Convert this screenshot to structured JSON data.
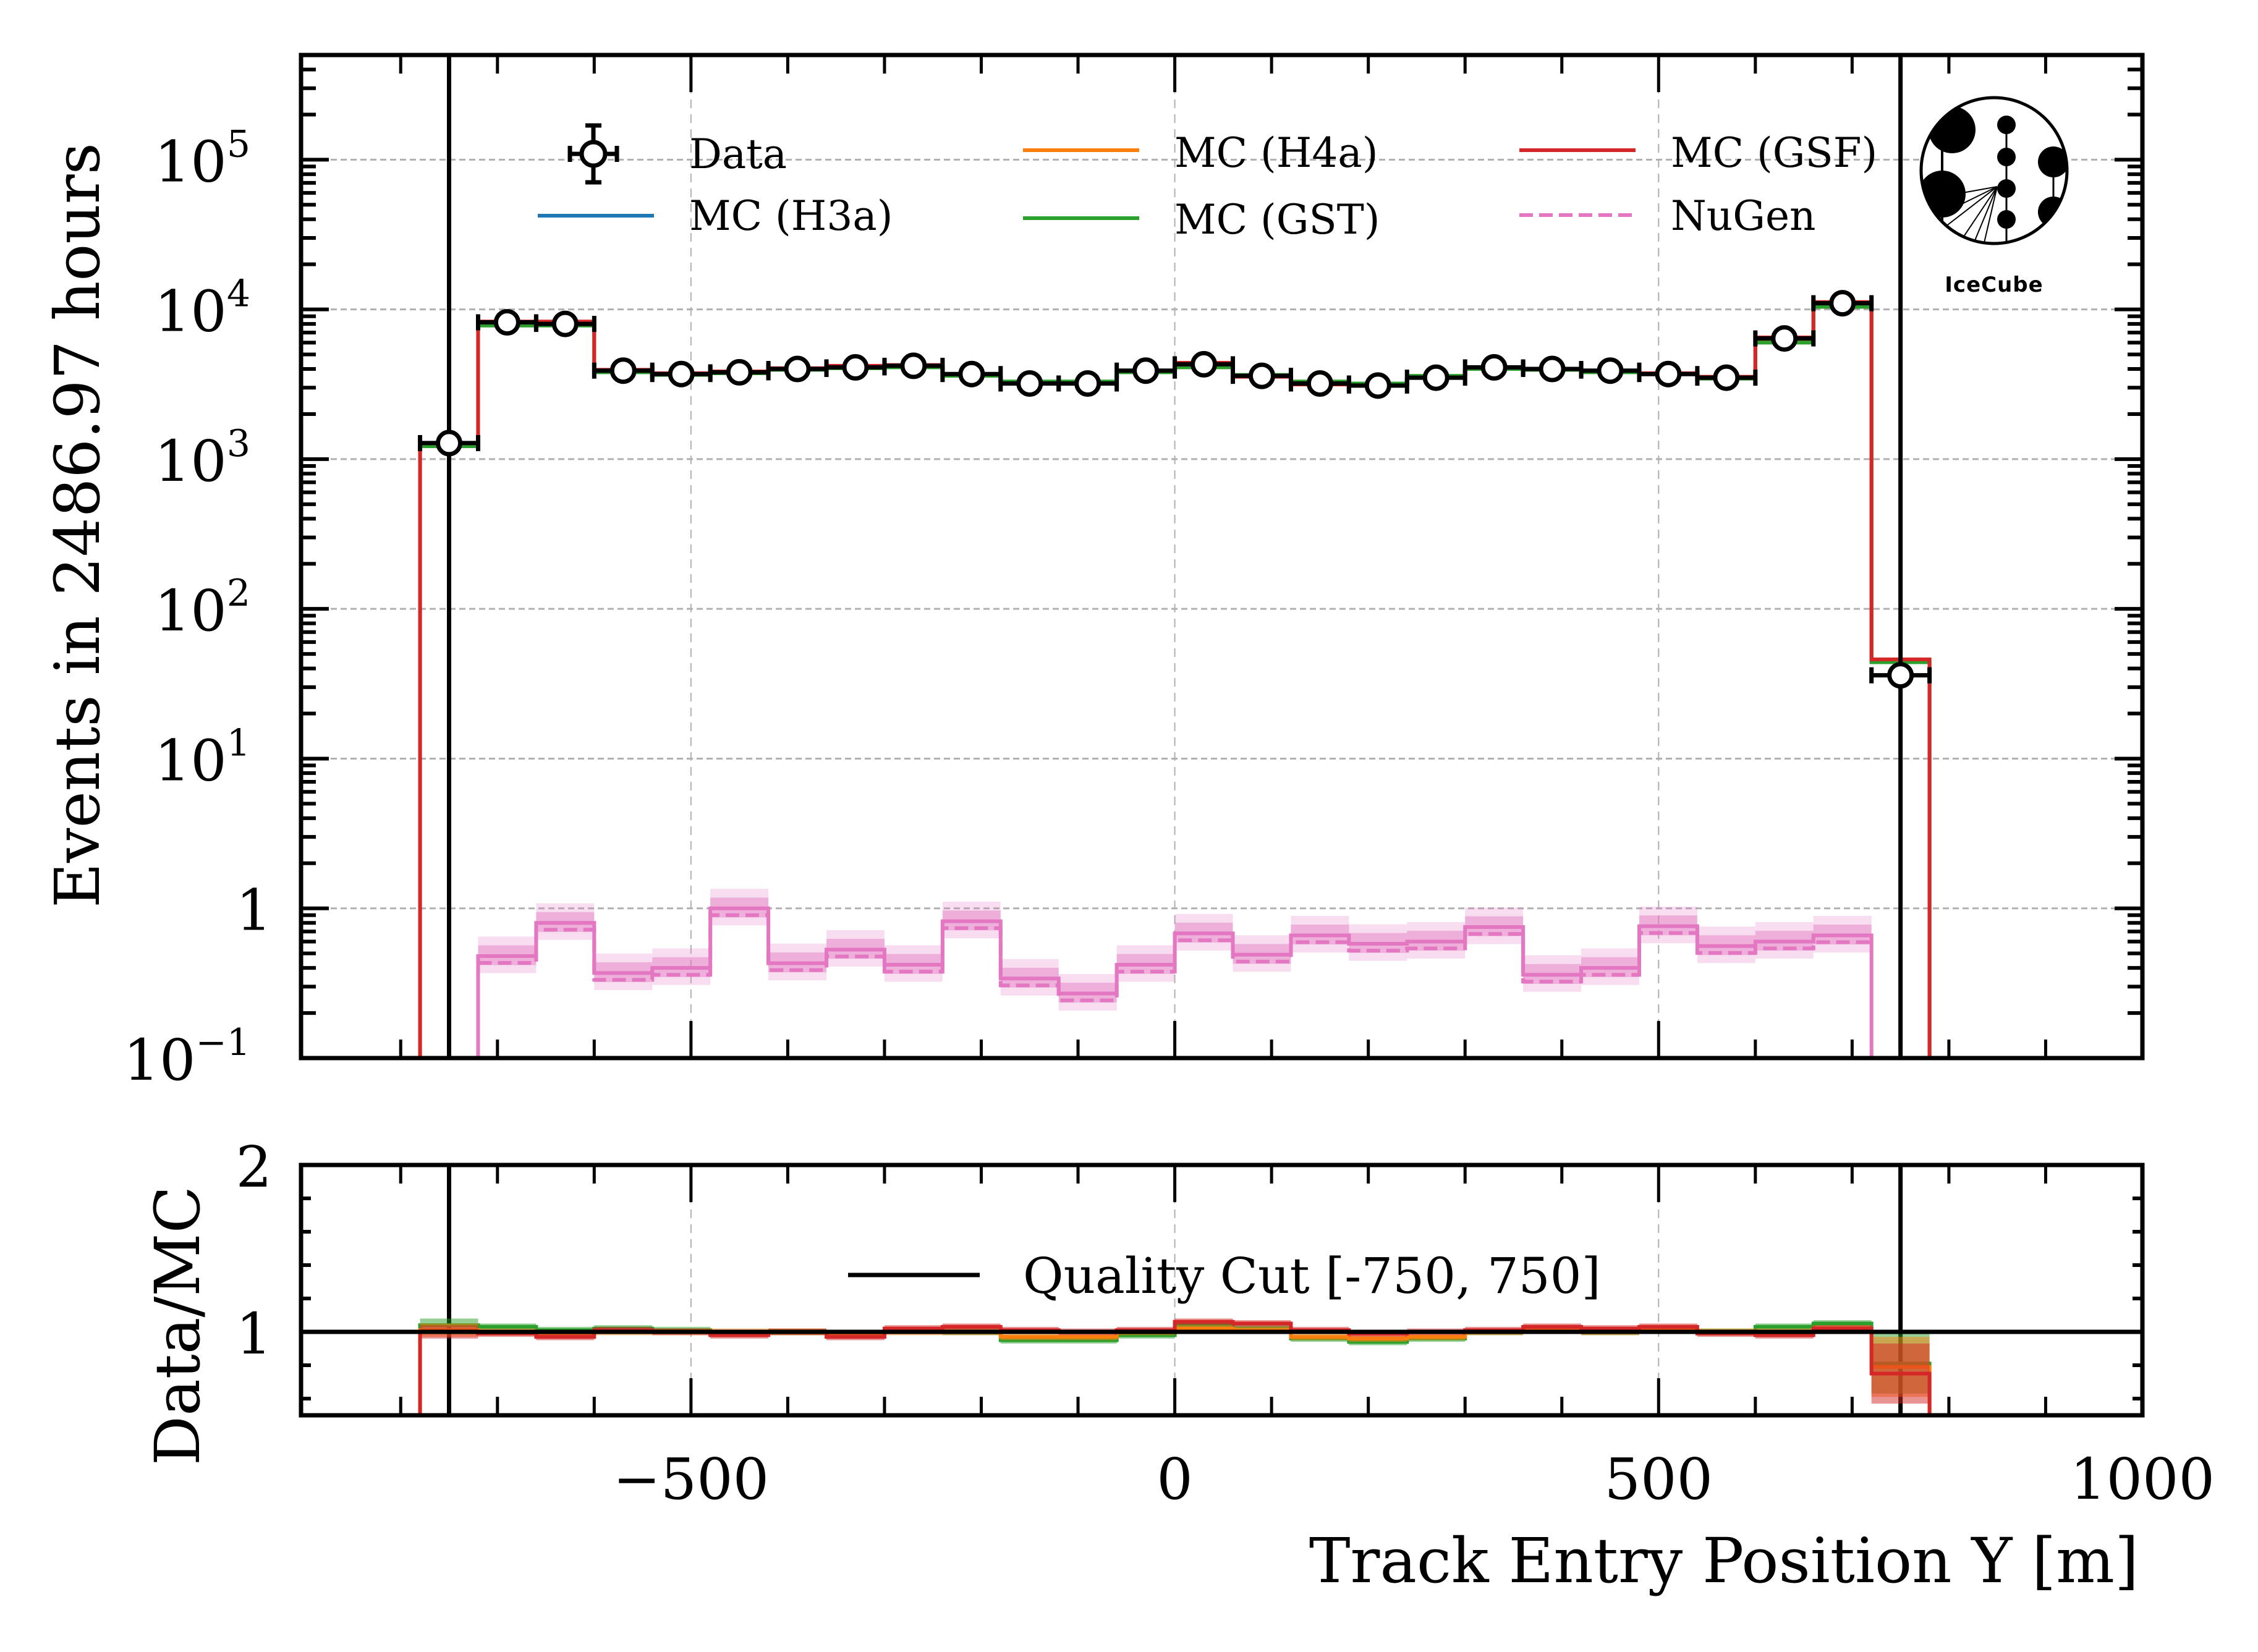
{
  "chart_data": [
    {
      "type": "bar",
      "panel": "main",
      "ylabel": "Events in 2486.97 hours",
      "yscale": "log",
      "xlim": [
        -903,
        1000
      ],
      "ylim": [
        0.1,
        500000
      ],
      "grid": true,
      "yticks": [
        {
          "v": 0.1,
          "base": "10",
          "exp": "−1"
        },
        {
          "v": 1,
          "base": "1",
          "exp": ""
        },
        {
          "v": 10,
          "base": "10",
          "exp": "1"
        },
        {
          "v": 100,
          "base": "10",
          "exp": "2"
        },
        {
          "v": 1000,
          "base": "10",
          "exp": "3"
        },
        {
          "v": 10000,
          "base": "10",
          "exp": "4"
        },
        {
          "v": 100000,
          "base": "10",
          "exp": "5"
        }
      ],
      "bin_edges": [
        -780,
        -720,
        -660,
        -600,
        -540,
        -480,
        -420,
        -360,
        -300,
        -240,
        -180,
        -120,
        -60,
        0,
        60,
        120,
        180,
        240,
        300,
        360,
        420,
        480,
        540,
        600,
        660,
        720,
        780
      ],
      "data": [
        1280,
        8200,
        8000,
        3900,
        3700,
        3800,
        4000,
        4100,
        4200,
        3700,
        3200,
        3200,
        3900,
        4300,
        3600,
        3200,
        3100,
        3500,
        4100,
        4000,
        3900,
        3700,
        3500,
        6400,
        11000,
        36
      ],
      "series": [
        {
          "name": "MC (H3a)",
          "color": "#1f77b4",
          "values": [
            1250,
            8000,
            8000,
            3850,
            3700,
            3800,
            4000,
            4100,
            4150,
            3650,
            3250,
            3250,
            3850,
            4200,
            3600,
            3250,
            3150,
            3550,
            4050,
            3950,
            3850,
            3700,
            3500,
            6300,
            10800,
            45
          ]
        },
        {
          "name": "MC (H4a)",
          "color": "#ff7f0e",
          "values": [
            1250,
            8000,
            8000,
            3850,
            3700,
            3800,
            4000,
            4100,
            4150,
            3650,
            3250,
            3250,
            3850,
            4200,
            3600,
            3250,
            3150,
            3550,
            4050,
            3950,
            3850,
            3700,
            3500,
            6300,
            10800,
            45
          ]
        },
        {
          "name": "MC (GST)",
          "color": "#2ca02c",
          "values": [
            1220,
            7800,
            7800,
            3800,
            3650,
            3750,
            3950,
            4050,
            4100,
            3600,
            3300,
            3300,
            3800,
            4100,
            3650,
            3300,
            3200,
            3600,
            4000,
            3950,
            3800,
            3700,
            3450,
            6000,
            10400,
            44
          ]
        },
        {
          "name": "MC (GSF)",
          "color": "#d62728",
          "values": [
            1280,
            8300,
            8300,
            3950,
            3750,
            3850,
            4050,
            4200,
            4250,
            3700,
            3200,
            3200,
            3900,
            4400,
            3550,
            3150,
            3100,
            3500,
            4100,
            4000,
            3900,
            3750,
            3550,
            6500,
            11200,
            46
          ]
        }
      ],
      "nugen": {
        "name": "NuGen",
        "color": "#e377c2",
        "bin_edges": [
          -720,
          -660,
          -600,
          -540,
          -480,
          -420,
          -360,
          -300,
          -240,
          -180,
          -120,
          -60,
          0,
          60,
          120,
          180,
          240,
          300,
          360,
          420,
          480,
          540,
          600,
          660,
          720
        ],
        "values": [
          0.48,
          0.8,
          0.37,
          0.4,
          1.0,
          0.43,
          0.53,
          0.42,
          0.82,
          0.34,
          0.27,
          0.42,
          0.68,
          0.49,
          0.66,
          0.58,
          0.6,
          0.75,
          0.36,
          0.4,
          0.76,
          0.56,
          0.6,
          0.66
        ]
      },
      "quality_cut": [
        -750,
        750
      ],
      "legend": {
        "placement": "top",
        "items": [
          {
            "label": "Data",
            "kind": "data"
          },
          {
            "label": "MC (H3a)",
            "kind": "line",
            "color": "#1f77b4"
          },
          {
            "label": "MC (H4a)",
            "kind": "line",
            "color": "#ff7f0e"
          },
          {
            "label": "MC (GST)",
            "kind": "line",
            "color": "#2ca02c"
          },
          {
            "label": "MC (GSF)",
            "kind": "line",
            "color": "#d62728"
          },
          {
            "label": "NuGen",
            "kind": "dash",
            "color": "#e377c2"
          }
        ]
      },
      "logo_text": "IceCube"
    },
    {
      "type": "bar",
      "panel": "ratio",
      "xlabel": "Track Entry Position Y [m]",
      "ylabel": "Data/MC",
      "xlim": [
        -903,
        1000
      ],
      "ylim": [
        0.5,
        2
      ],
      "xticks": [
        {
          "v": -500,
          "label": "−500"
        },
        {
          "v": 0,
          "label": "0"
        },
        {
          "v": 500,
          "label": "500"
        },
        {
          "v": 1000,
          "label": "1000"
        }
      ],
      "yticks": [
        {
          "v": 1,
          "label": "1"
        },
        {
          "v": 2,
          "label": "2"
        }
      ],
      "series": [
        {
          "name": "MC (GST)",
          "color": "#2ca02c",
          "values": [
            1.04,
            1.03,
            1.01,
            1.02,
            1.01,
            0.99,
            1.0,
            0.98,
            1.01,
            1.0,
            0.95,
            0.95,
            0.98,
            1.04,
            1.02,
            0.96,
            0.94,
            0.96,
            1.0,
            1.01,
            1.0,
            1.01,
            1.0,
            1.03,
            1.05,
            0.81
          ]
        },
        {
          "name": "MC (H4a)",
          "color": "#ff7f0e",
          "values": [
            1.01,
            1.0,
            0.99,
            1.0,
            1.0,
            1.0,
            1.0,
            0.99,
            1.0,
            1.0,
            0.97,
            0.97,
            1.0,
            1.02,
            1.01,
            0.97,
            0.96,
            0.97,
            1.0,
            1.01,
            1.0,
            1.01,
            1.0,
            1.0,
            1.02,
            0.79
          ]
        },
        {
          "name": "MC (GSF)",
          "color": "#d62728",
          "values": [
            1.0,
            0.99,
            0.97,
            1.01,
            1.0,
            0.98,
            1.0,
            0.97,
            1.02,
            1.03,
            1.01,
            1.0,
            1.01,
            1.06,
            1.05,
            1.01,
            0.99,
            1.0,
            1.01,
            1.03,
            1.02,
            1.03,
            0.99,
            0.98,
            1.02,
            0.75
          ]
        }
      ],
      "legend": {
        "placement": "center",
        "items": [
          {
            "label": "Quality Cut [-750, 750]",
            "kind": "line",
            "color": "#000000"
          }
        ]
      }
    }
  ]
}
